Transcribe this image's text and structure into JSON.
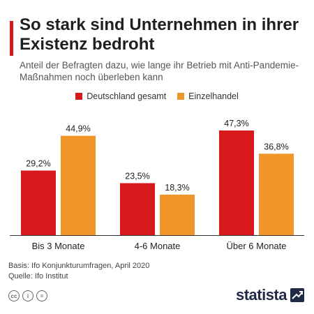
{
  "header": {
    "title": "So stark sind Unternehmen in ihrer Existenz bedroht",
    "subtitle": "Anteil der Befragten dazu, wie lange ihr Betrieb mit Anti-Pandemie-Maßnahmen noch überleben kann"
  },
  "chart_data": {
    "type": "bar",
    "title": "So stark sind Unternehmen in ihrer Existenz bedroht",
    "categories": [
      "Bis 3 Monate",
      "4-6 Monate",
      "Über 6 Monate"
    ],
    "series": [
      {
        "name": "Deutschland gesamt",
        "values": [
          29.2,
          23.5,
          47.3
        ],
        "labels": [
          "29,2%",
          "23,5%",
          "47,3%"
        ],
        "color": "#d7191e"
      },
      {
        "name": "Einzelhandel",
        "values": [
          44.9,
          18.3,
          36.8
        ],
        "labels": [
          "44,9%",
          "18,3%",
          "36,8%"
        ],
        "color": "#f0952a"
      }
    ],
    "ylim": [
      0,
      50
    ],
    "grid": false,
    "legend_position": "top-center"
  },
  "footer": {
    "basis": "Basis: Ifo Konjunkturumfragen, April 2020",
    "source": "Quelle: Ifo Institut",
    "license_icons": [
      "cc",
      "i",
      "="
    ],
    "logo": "statista"
  },
  "colors": {
    "accent": "#d7191e",
    "series_1": "#d7191e",
    "series_2": "#f0952a",
    "logo": "#1f2a44"
  }
}
